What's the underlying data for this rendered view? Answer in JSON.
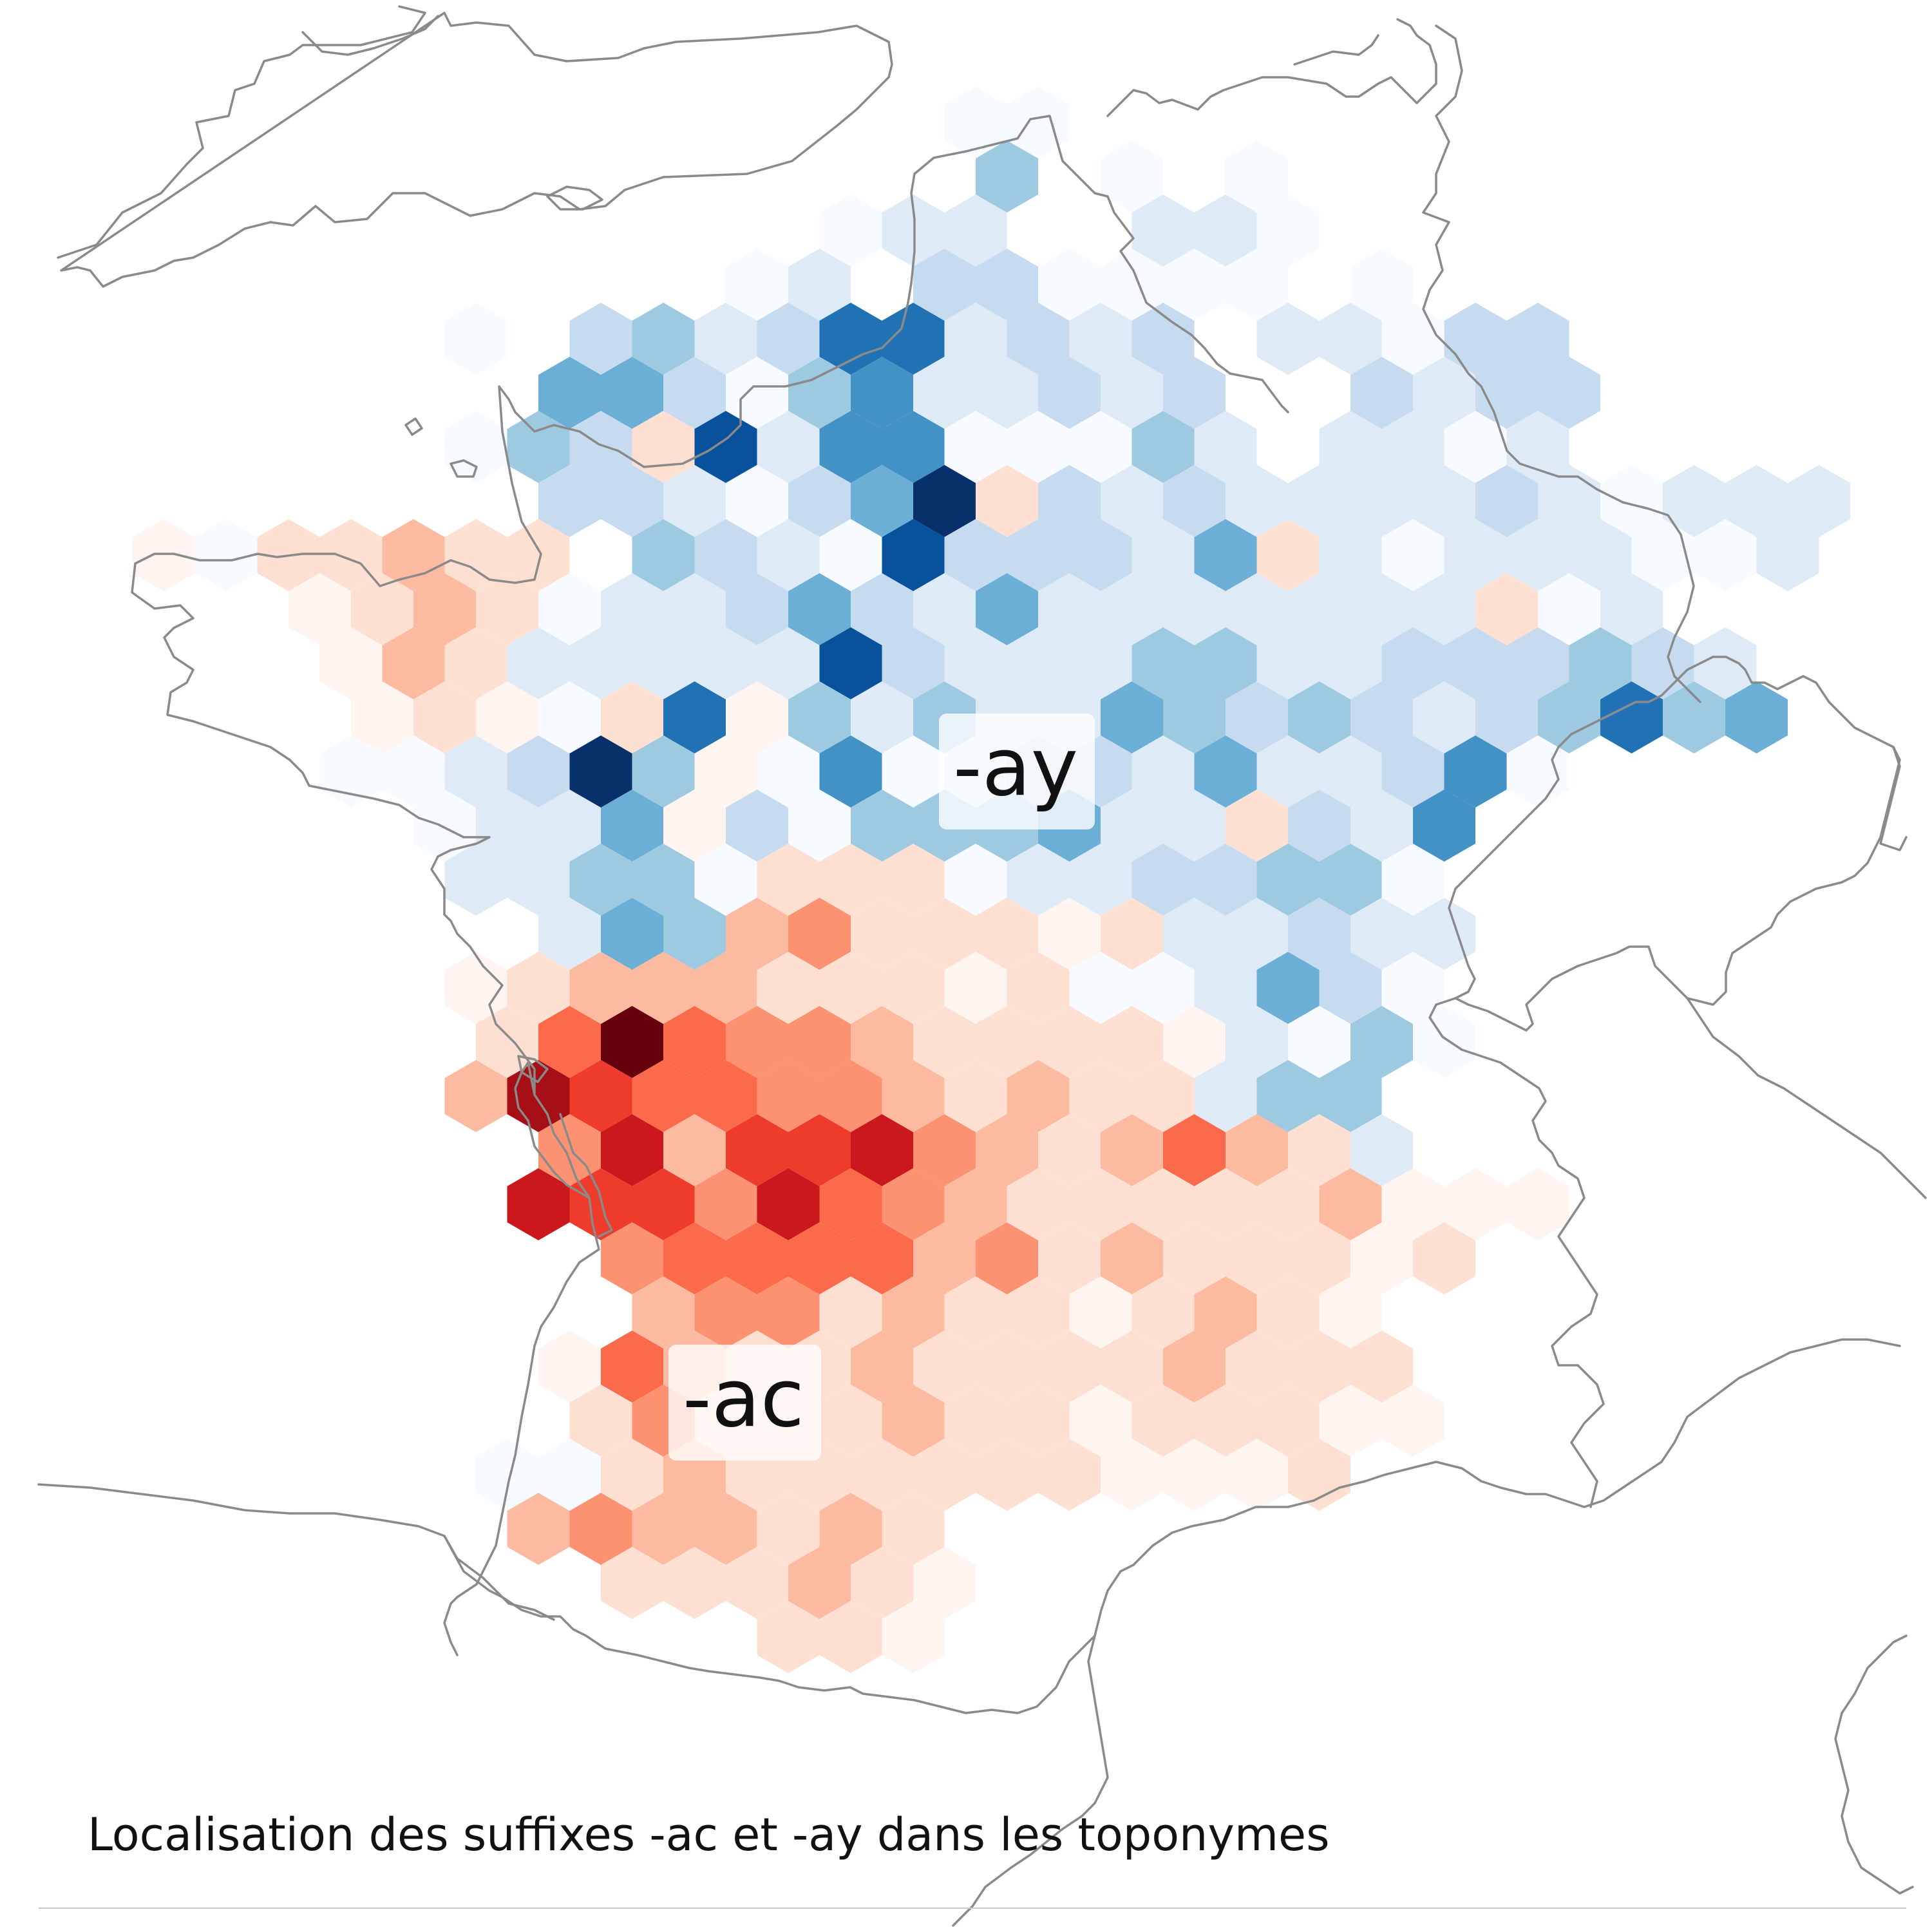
{
  "title": "Localisation des suffixes -ac et -ay dans les toponymes",
  "labels": {
    "ay": "-ay",
    "ac": "-ac"
  },
  "colors": {
    "ay_scale": [
      "#f7fbff",
      "#deebf7",
      "#c6dbef",
      "#9ecae1",
      "#6baed6",
      "#4292c6",
      "#2171b5",
      "#08519c",
      "#08306b"
    ],
    "ac_scale": [
      "#fff5f0",
      "#fee0d2",
      "#fcbba1",
      "#fc9272",
      "#fb6a4a",
      "#ef3b2c",
      "#cb181d",
      "#a50f15",
      "#67000d"
    ],
    "coastline": "#8a8a8a"
  },
  "legend": [
    {
      "suffix": "-ay",
      "color_scale": "Blues"
    },
    {
      "suffix": "-ac",
      "color_scale": "Reds"
    }
  ]
}
